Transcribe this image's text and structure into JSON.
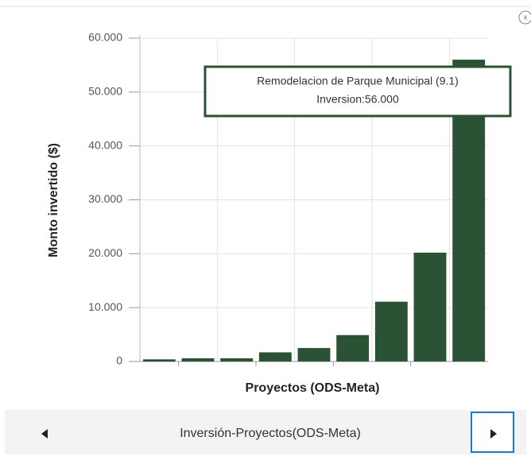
{
  "chart_data": {
    "type": "bar",
    "ylabel": "Monto invertido ($)",
    "xlabel": "Proyectos (ODS-Meta)",
    "categories": [
      null,
      null,
      null,
      null,
      null,
      null,
      null,
      null,
      null
    ],
    "values": [
      400,
      600,
      600,
      1700,
      2500,
      4900,
      11100,
      20200,
      56000
    ],
    "color": "#2b5234",
    "ylim": [
      0,
      60000
    ],
    "yticks": [
      0,
      {
        "value": 10000,
        "label": "10.000"
      },
      {
        "value": 20000,
        "label": "20.000"
      },
      {
        "value": 30000,
        "label": "30.000"
      },
      {
        "value": 40000,
        "label": "40.000"
      },
      {
        "value": 50000,
        "label": "50.000"
      },
      {
        "value": 60000,
        "label": "60.000"
      }
    ],
    "grid": true,
    "annotation": [
      "Remodelacion de Parque Municipal (9.1)",
      "Inversion:56.000"
    ]
  },
  "navigation": {
    "title": "Inversión-Proyectos(ODS-Meta)"
  }
}
